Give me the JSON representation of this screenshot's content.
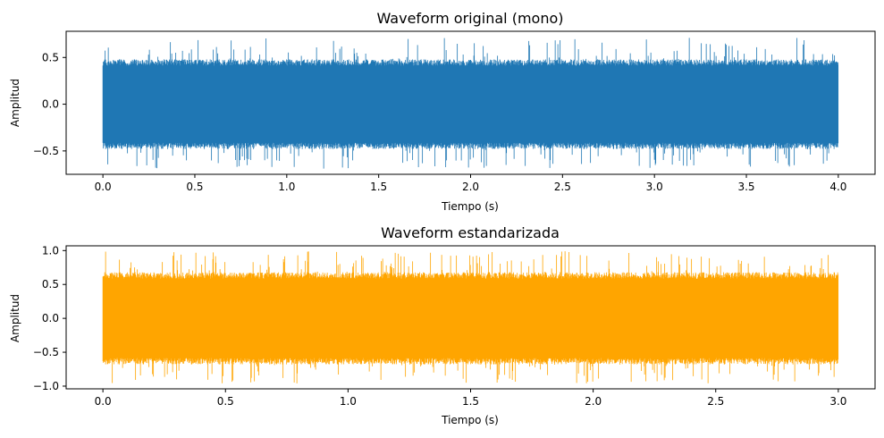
{
  "chart_data": [
    {
      "type": "line",
      "title": "Waveform original (mono)",
      "xlabel": "Tiempo (s)",
      "ylabel": "Amplitud",
      "xlim": [
        -0.2,
        4.2
      ],
      "ylim": [
        -0.75,
        0.78
      ],
      "xticks": [
        0.0,
        0.5,
        1.0,
        1.5,
        2.0,
        2.5,
        3.0,
        3.5,
        4.0
      ],
      "xtick_labels": [
        "0.0",
        "0.5",
        "1.0",
        "1.5",
        "2.0",
        "2.5",
        "3.0",
        "3.5",
        "4.0"
      ],
      "yticks": [
        -0.5,
        0.0,
        0.5
      ],
      "ytick_labels": [
        "−0.5",
        "0.0",
        "0.5"
      ],
      "grid": false,
      "series": [
        {
          "color": "#1f77b4",
          "x_range": [
            0.0,
            4.0
          ],
          "envelope_amplitude_typical": 0.48,
          "peak_max": 0.71,
          "peak_min": -0.69
        }
      ]
    },
    {
      "type": "line",
      "title": "Waveform estandarizada",
      "xlabel": "Tiempo (s)",
      "ylabel": "Amplitud",
      "xlim": [
        -0.15,
        3.15
      ],
      "ylim": [
        -1.04,
        1.07
      ],
      "xticks": [
        0.0,
        0.5,
        1.0,
        1.5,
        2.0,
        2.5,
        3.0
      ],
      "xtick_labels": [
        "0.0",
        "0.5",
        "1.0",
        "1.5",
        "2.0",
        "2.5",
        "3.0"
      ],
      "yticks": [
        -1.0,
        -0.5,
        0.0,
        0.5,
        1.0
      ],
      "ytick_labels": [
        "−1.0",
        "−0.5",
        "0.0",
        "0.5",
        "1.0"
      ],
      "grid": false,
      "series": [
        {
          "color": "#ffa500",
          "x_range": [
            0.0,
            3.0
          ],
          "envelope_amplitude_typical": 0.68,
          "peak_max": 0.99,
          "peak_min": -0.96
        }
      ]
    }
  ]
}
